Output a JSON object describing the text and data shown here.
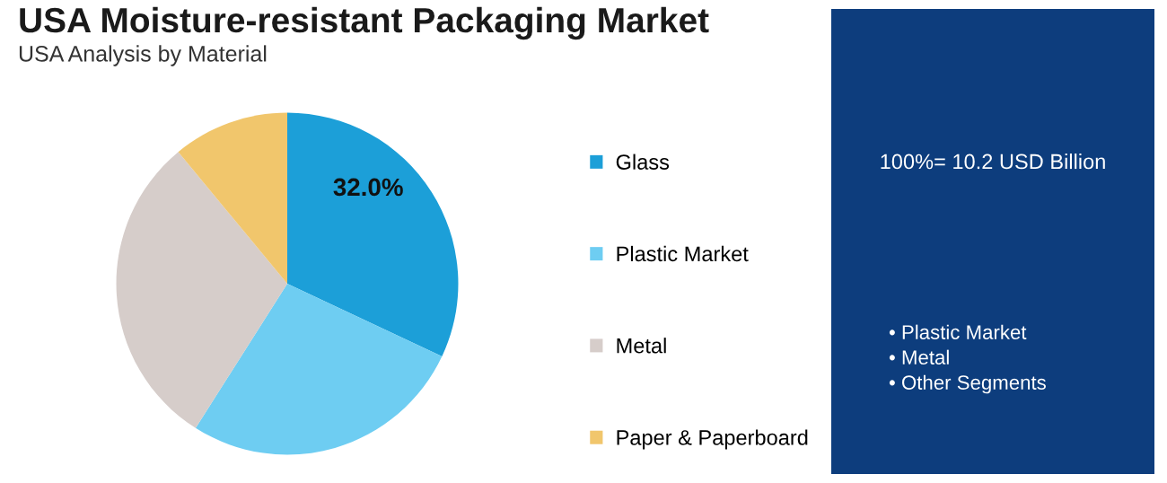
{
  "chart_data": {
    "type": "pie",
    "title": "USA Moisture-resistant Packaging Market",
    "subtitle": "USA Analysis by Material",
    "categories": [
      "Glass",
      "Plastic Market",
      "Metal",
      "Paper & Paperboard"
    ],
    "values": [
      32.0,
      27,
      30,
      11
    ],
    "colors": [
      "#1c9fd8",
      "#6ecdf2",
      "#d6cdca",
      "#f1c66c"
    ],
    "value_labels": [
      "32.0%",
      null,
      null,
      null
    ],
    "legend": "right",
    "annotations": [
      "100%= 10.2 USD Billion",
      "• Plastic Market",
      "• Metal",
      "• Other Segments"
    ]
  }
}
